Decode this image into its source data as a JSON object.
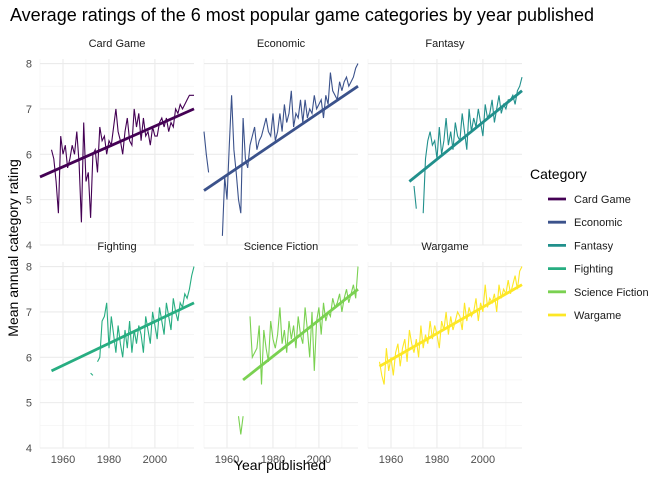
{
  "chart_data": {
    "type": "line",
    "title": "Average ratings of the 6 most popular game categories by year published",
    "xlabel": "Year published",
    "ylabel": "Mean annual category rating",
    "xlim": [
      1950,
      2017
    ],
    "ylim": [
      4,
      8.1
    ],
    "x_ticks": [
      1960,
      1980,
      2000
    ],
    "y_ticks": [
      4,
      5,
      6,
      7,
      8
    ],
    "grid": true,
    "legend_position": "right",
    "legend_title": "Category",
    "panels": [
      {
        "name": "Card Game",
        "color": "#440154",
        "trend": {
          "x": [
            1950,
            2017
          ],
          "y": [
            5.5,
            7.0
          ]
        },
        "x": [
          1955,
          1956,
          1957,
          1958,
          1959,
          1960,
          1961,
          1962,
          1963,
          1964,
          1965,
          1966,
          1967,
          1968,
          1969,
          1970,
          1971,
          1972,
          1973,
          1974,
          1975,
          1976,
          1977,
          1978,
          1979,
          1980,
          1981,
          1982,
          1983,
          1984,
          1985,
          1986,
          1987,
          1988,
          1989,
          1990,
          1991,
          1992,
          1993,
          1994,
          1995,
          1996,
          1997,
          1998,
          1999,
          2000,
          2001,
          2002,
          2003,
          2004,
          2005,
          2006,
          2007,
          2008,
          2009,
          2010,
          2011,
          2012,
          2013,
          2014,
          2015,
          2016,
          2017
        ],
        "values": [
          6.1,
          5.9,
          5.4,
          4.7,
          6.4,
          6.0,
          6.2,
          5.7,
          5.9,
          6.2,
          6.0,
          6.5,
          5.8,
          4.5,
          6.7,
          5.4,
          5.6,
          4.6,
          6.0,
          6.1,
          5.6,
          6.6,
          6.3,
          6.4,
          6.0,
          6.3,
          6.2,
          6.6,
          7.0,
          6.5,
          6.3,
          6.0,
          6.5,
          6.8,
          6.3,
          6.2,
          7.0,
          6.6,
          6.9,
          6.3,
          6.8,
          6.4,
          6.5,
          6.2,
          6.6,
          6.4,
          6.4,
          6.7,
          6.8,
          6.6,
          6.8,
          6.5,
          6.7,
          6.6,
          7.0,
          6.9,
          7.1,
          7.0,
          7.1,
          7.2,
          7.3,
          7.3,
          7.3
        ]
      },
      {
        "name": "Economic",
        "color": "#3b528b",
        "trend": {
          "x": [
            1950,
            2017
          ],
          "y": [
            5.2,
            7.5
          ]
        },
        "x": [
          1950,
          1951,
          1952,
          1953,
          1954,
          1955,
          1956,
          1957,
          1958,
          1959,
          1960,
          1961,
          1962,
          1963,
          1964,
          1965,
          1966,
          1967,
          1968,
          1969,
          1970,
          1971,
          1972,
          1973,
          1974,
          1975,
          1976,
          1977,
          1978,
          1979,
          1980,
          1981,
          1982,
          1983,
          1984,
          1985,
          1986,
          1987,
          1988,
          1989,
          1990,
          1991,
          1992,
          1993,
          1994,
          1995,
          1996,
          1997,
          1998,
          1999,
          2000,
          2001,
          2002,
          2003,
          2004,
          2005,
          2006,
          2007,
          2008,
          2009,
          2010,
          2011,
          2012,
          2013,
          2014,
          2015,
          2016,
          2017
        ],
        "values": [
          6.5,
          6.0,
          5.6,
          null,
          null,
          null,
          null,
          null,
          4.2,
          5.5,
          5.0,
          6.2,
          7.3,
          6.1,
          5.6,
          5.0,
          4.7,
          6.8,
          5.9,
          5.7,
          6.2,
          6.4,
          6.6,
          6.1,
          6.3,
          6.4,
          6.6,
          6.8,
          6.5,
          6.4,
          6.9,
          6.3,
          6.5,
          6.9,
          6.5,
          7.1,
          6.7,
          6.9,
          7.4,
          6.6,
          6.9,
          6.8,
          7.2,
          6.7,
          7.2,
          6.8,
          7.0,
          6.9,
          7.3,
          7.0,
          7.1,
          7.2,
          6.8,
          7.3,
          7.1,
          7.8,
          7.4,
          7.3,
          7.2,
          7.6,
          7.4,
          7.6,
          7.7,
          7.5,
          7.6,
          7.7,
          7.9,
          8.0
        ]
      },
      {
        "name": "Fantasy",
        "color": "#21908c",
        "trend": {
          "x": [
            1968,
            2017
          ],
          "y": [
            5.4,
            7.4
          ]
        },
        "x": [
          1968,
          1969,
          1970,
          1971,
          1972,
          1973,
          1974,
          1975,
          1976,
          1977,
          1978,
          1979,
          1980,
          1981,
          1982,
          1983,
          1984,
          1985,
          1986,
          1987,
          1988,
          1989,
          1990,
          1991,
          1992,
          1993,
          1994,
          1995,
          1996,
          1997,
          1998,
          1999,
          2000,
          2001,
          2002,
          2003,
          2004,
          2005,
          2006,
          2007,
          2008,
          2009,
          2010,
          2011,
          2012,
          2013,
          2014,
          2015,
          2016,
          2017
        ],
        "values": [
          null,
          null,
          5.3,
          4.8,
          null,
          null,
          4.7,
          5.9,
          6.3,
          6.5,
          6.2,
          6.3,
          5.9,
          6.6,
          6.0,
          6.3,
          6.8,
          6.2,
          6.5,
          6.1,
          6.7,
          6.4,
          6.3,
          6.9,
          6.5,
          6.1,
          7.0,
          6.5,
          6.8,
          6.6,
          7.0,
          6.7,
          6.4,
          7.1,
          6.8,
          6.9,
          7.2,
          6.7,
          7.0,
          7.3,
          6.9,
          7.1,
          7.0,
          7.2,
          7.2,
          7.3,
          7.1,
          7.4,
          7.5,
          7.7
        ]
      },
      {
        "name": "Fighting",
        "color": "#27ad81",
        "trend": {
          "x": [
            1955,
            2017
          ],
          "y": [
            5.7,
            7.2
          ]
        },
        "x": [
          1972,
          1973,
          1974,
          1975,
          1976,
          1977,
          1978,
          1979,
          1980,
          1981,
          1982,
          1983,
          1984,
          1985,
          1986,
          1987,
          1988,
          1989,
          1990,
          1991,
          1992,
          1993,
          1994,
          1995,
          1996,
          1997,
          1998,
          1999,
          2000,
          2001,
          2002,
          2003,
          2004,
          2005,
          2006,
          2007,
          2008,
          2009,
          2010,
          2011,
          2012,
          2013,
          2014,
          2015,
          2016,
          2017
        ],
        "values": [
          5.65,
          5.6,
          null,
          5.9,
          6.0,
          6.8,
          6.9,
          7.2,
          6.2,
          6.9,
          6.5,
          6.1,
          6.7,
          6.3,
          6.0,
          6.6,
          6.2,
          6.8,
          6.1,
          6.6,
          6.3,
          6.7,
          6.5,
          6.1,
          6.9,
          6.6,
          6.3,
          7.0,
          6.7,
          6.4,
          7.1,
          6.8,
          6.5,
          7.2,
          6.9,
          6.6,
          7.3,
          7.0,
          6.8,
          7.2,
          7.1,
          7.4,
          7.3,
          7.5,
          7.8,
          8.0
        ]
      },
      {
        "name": "Science Fiction",
        "color": "#7ad151",
        "trend": {
          "x": [
            1967,
            2017
          ],
          "y": [
            5.5,
            7.5
          ]
        },
        "x": [
          1965,
          1966,
          1967,
          1968,
          1969,
          1970,
          1971,
          1972,
          1973,
          1974,
          1975,
          1976,
          1977,
          1978,
          1979,
          1980,
          1981,
          1982,
          1983,
          1984,
          1985,
          1986,
          1987,
          1988,
          1989,
          1990,
          1991,
          1992,
          1993,
          1994,
          1995,
          1996,
          1997,
          1998,
          1999,
          2000,
          2001,
          2002,
          2003,
          2004,
          2005,
          2006,
          2007,
          2008,
          2009,
          2010,
          2011,
          2012,
          2013,
          2014,
          2015,
          2016,
          2017
        ],
        "values": [
          4.7,
          4.3,
          4.7,
          null,
          null,
          6.9,
          6.0,
          6.1,
          6.2,
          6.7,
          5.4,
          6.6,
          6.2,
          5.9,
          6.8,
          6.4,
          6.2,
          6.5,
          7.1,
          6.3,
          6.6,
          6.1,
          6.8,
          6.4,
          6.7,
          6.2,
          6.9,
          6.5,
          6.3,
          7.1,
          6.6,
          6.0,
          7.0,
          5.7,
          6.8,
          7.1,
          6.5,
          7.2,
          6.8,
          7.0,
          6.9,
          7.3,
          7.1,
          7.2,
          7.4,
          7.0,
          7.3,
          7.5,
          7.2,
          7.4,
          7.6,
          7.3,
          8.0
        ]
      },
      {
        "name": "Wargame",
        "color": "#fde725",
        "trend": {
          "x": [
            1955,
            2017
          ],
          "y": [
            5.8,
            7.6
          ]
        },
        "x": [
          1955,
          1956,
          1957,
          1958,
          1959,
          1960,
          1961,
          1962,
          1963,
          1964,
          1965,
          1966,
          1967,
          1968,
          1969,
          1970,
          1971,
          1972,
          1973,
          1974,
          1975,
          1976,
          1977,
          1978,
          1979,
          1980,
          1981,
          1982,
          1983,
          1984,
          1985,
          1986,
          1987,
          1988,
          1989,
          1990,
          1991,
          1992,
          1993,
          1994,
          1995,
          1996,
          1997,
          1998,
          1999,
          2000,
          2001,
          2002,
          2003,
          2004,
          2005,
          2006,
          2007,
          2008,
          2009,
          2010,
          2011,
          2012,
          2013,
          2014,
          2015,
          2016,
          2017
        ],
        "values": [
          5.9,
          5.6,
          5.4,
          6.2,
          5.7,
          6.0,
          5.6,
          6.1,
          6.3,
          5.8,
          6.2,
          6.4,
          5.9,
          6.6,
          6.3,
          6.1,
          6.4,
          6.0,
          6.7,
          6.2,
          6.5,
          6.3,
          6.8,
          6.4,
          6.7,
          6.5,
          6.2,
          6.8,
          6.6,
          7.0,
          6.5,
          6.9,
          6.6,
          6.8,
          7.0,
          6.9,
          6.6,
          7.2,
          6.8,
          7.1,
          6.9,
          7.0,
          7.3,
          6.8,
          7.2,
          7.0,
          7.6,
          7.1,
          7.3,
          7.2,
          7.4,
          7.0,
          7.6,
          7.3,
          7.5,
          7.4,
          7.7,
          7.4,
          7.6,
          7.8,
          7.5,
          7.9,
          8.0
        ]
      }
    ]
  }
}
